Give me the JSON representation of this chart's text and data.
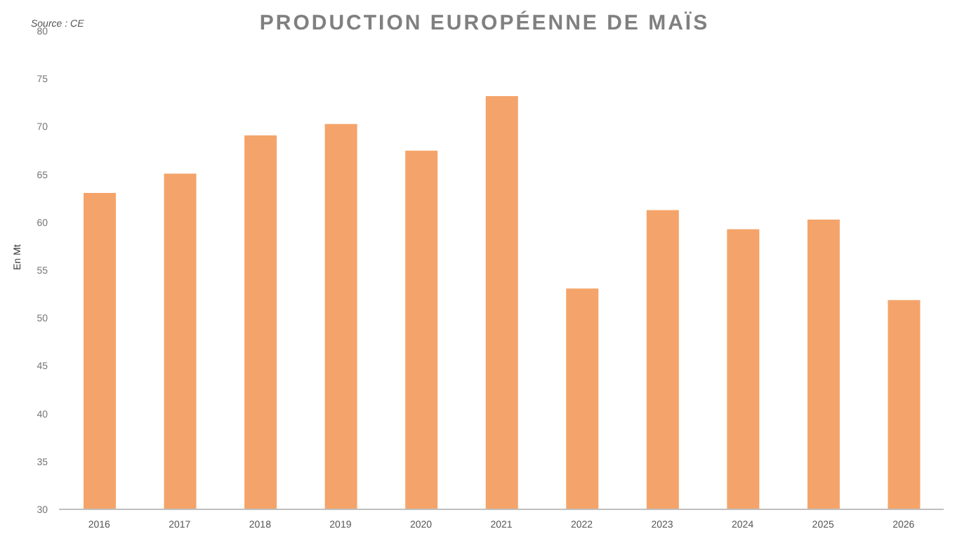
{
  "chart_data": {
    "type": "bar",
    "title": "PRODUCTION EUROPÉENNE DE MAÏS",
    "ylabel": "En Mt",
    "annotations": [
      "Source : CE"
    ],
    "categories": [
      "2016",
      "2017",
      "2018",
      "2019",
      "2020",
      "2021",
      "2022",
      "2023",
      "2024",
      "2025",
      "2026"
    ],
    "values": [
      63,
      65,
      69,
      70.2,
      67.4,
      73.1,
      53,
      61.2,
      59.2,
      60.2,
      51.8
    ],
    "color": "#f4a46a",
    "ylim": [
      30,
      80
    ],
    "yticks": [
      30,
      35,
      40,
      45,
      50,
      55,
      60,
      65,
      70,
      75,
      80
    ],
    "grid": false
  }
}
